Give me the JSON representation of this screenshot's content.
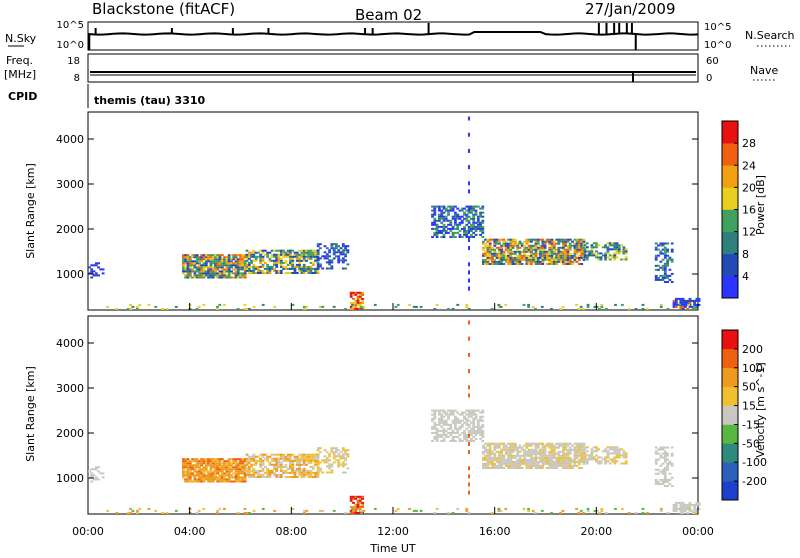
{
  "header": {
    "station": "Blackstone (fitACF)",
    "beam": "Beam 02",
    "date": "27/Jan/2009"
  },
  "top_panels": {
    "nsky": {
      "label": "N.Sky",
      "ticks": [
        "10^5",
        "10^0"
      ],
      "right_ticks": [
        "10^5",
        "10^0"
      ],
      "right_label": "N.Search"
    },
    "freq": {
      "label1": "Freq.",
      "label2": "[MHz]",
      "ticks": [
        "18",
        "8"
      ],
      "right_ticks": [
        "60",
        "0"
      ],
      "right_label": "Nave"
    },
    "cpid": {
      "label": "CPID",
      "value": "themis (tau) 3310"
    }
  },
  "chart_data": [
    {
      "type": "heatmap",
      "name": "power",
      "ylabel": "Slant Range [km]",
      "yticks": [
        "4000",
        "3000",
        "2000",
        "1000"
      ],
      "ylim": [
        200,
        4600
      ],
      "xlim": [
        0,
        24
      ],
      "colorbar": {
        "label": "Power [dB]",
        "ticks": [
          "28",
          "24",
          "20",
          "16",
          "12",
          "8",
          "4"
        ],
        "colors": [
          "#2b34ff",
          "#234bb8",
          "#2f7f7f",
          "#3fa060",
          "#e8d020",
          "#f0a010",
          "#ef6010",
          "#e81010"
        ]
      }
    },
    {
      "type": "heatmap",
      "name": "velocity",
      "ylabel": "Slant Range [km]",
      "yticks": [
        "4000",
        "3000",
        "2000",
        "1000"
      ],
      "ylim": [
        200,
        4600
      ],
      "xlim": [
        0,
        24
      ],
      "colorbar": {
        "label": "Velocity [m s^-1]",
        "ticks": [
          "200",
          "100",
          "50",
          "15",
          "-15",
          "-50",
          "-100",
          "-200"
        ],
        "colors": [
          "#1d3fcc",
          "#2a60b8",
          "#2e8a7a",
          "#56b840",
          "#c8c8c0",
          "#f0c030",
          "#ef9a20",
          "#ef6010",
          "#e81010"
        ]
      }
    }
  ],
  "xaxis": {
    "label": "Time UT",
    "ticks": [
      "00:00",
      "04:00",
      "08:00",
      "12:00",
      "16:00",
      "20:00",
      "00:00"
    ]
  }
}
